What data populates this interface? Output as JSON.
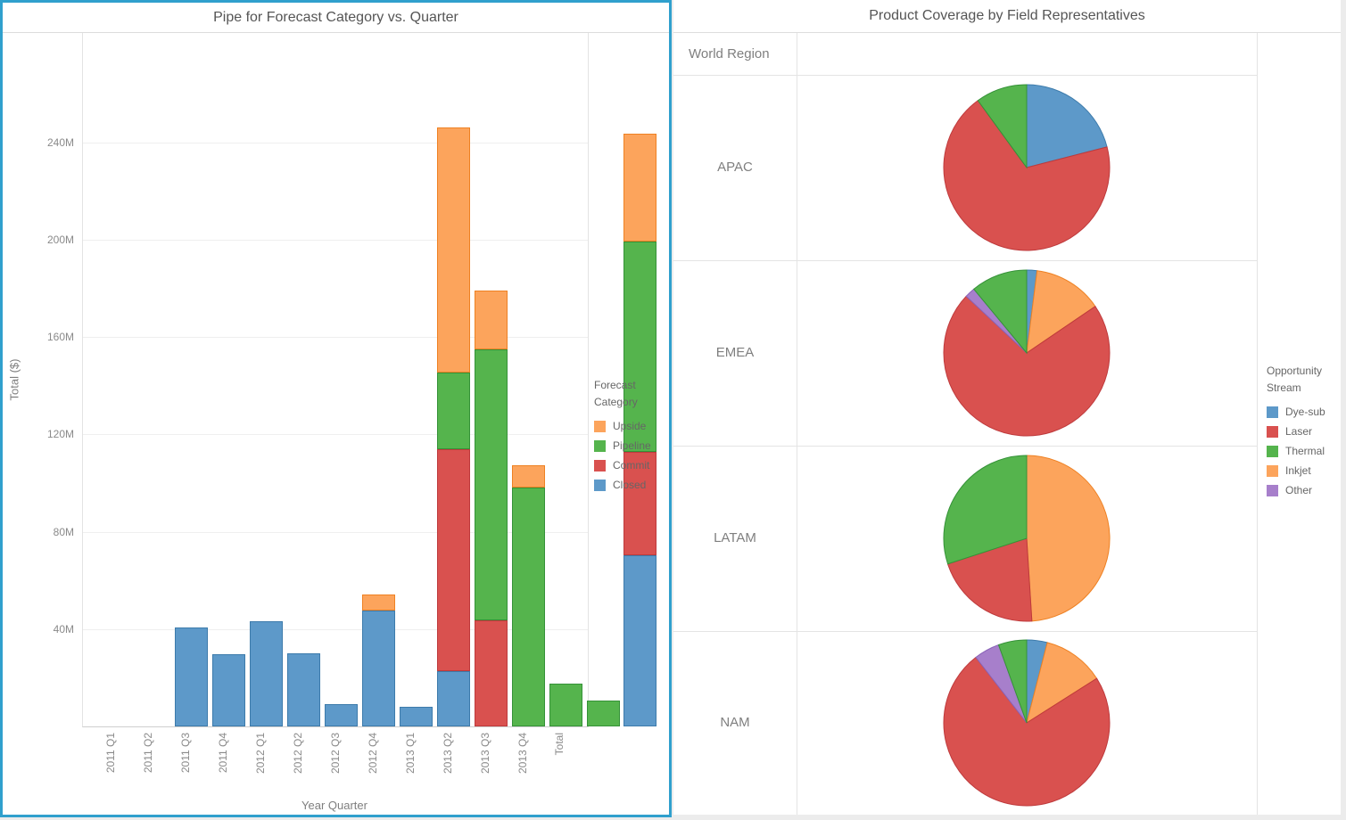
{
  "left_chart": {
    "title": "Pipe for Forecast Category vs. Quarter",
    "x_axis_label": "Year Quarter",
    "y_axis_label": "Total ($)",
    "legend_title_line1": "Forecast",
    "legend_title_line2": "Category",
    "legend_items": [
      "Upside",
      "Pipeline",
      "Commit",
      "Closed"
    ],
    "chart_data": {
      "type": "bar",
      "stacked": true,
      "categories": [
        "2011 Q1",
        "2011 Q2",
        "2011 Q3",
        "2011 Q4",
        "2012 Q1",
        "2012 Q2",
        "2012 Q3",
        "2012 Q4",
        "2013 Q1",
        "2013 Q2",
        "2013 Q3",
        "2013 Q4",
        "Total"
      ],
      "series": [
        {
          "name": "Closed",
          "values": [
            40.7,
            29.5,
            43.3,
            30.1,
            9.2,
            47.7,
            8.1,
            22.8,
            0,
            0,
            0,
            0,
            70.5
          ]
        },
        {
          "name": "Commit",
          "values": [
            0,
            0,
            0,
            0,
            0,
            0,
            0,
            91.0,
            43.7,
            0,
            0,
            0,
            42.2
          ]
        },
        {
          "name": "Pipeline",
          "values": [
            0,
            0,
            0,
            0,
            0,
            0,
            0,
            31.5,
            111.2,
            98.0,
            17.6,
            10.6,
            86.6
          ]
        },
        {
          "name": "Upside",
          "values": [
            0,
            0,
            0,
            0,
            0,
            6.6,
            0,
            100.9,
            24.2,
            9.2,
            0,
            0,
            44.4
          ]
        }
      ],
      "title": "Pipe for Forecast Category vs. Quarter",
      "xlabel": "Year Quarter",
      "ylabel": "Total ($)",
      "ylim": [
        0,
        285
      ],
      "yticks": [
        40,
        80,
        120,
        160,
        200,
        240
      ],
      "ytick_labels": [
        "40M",
        "80M",
        "120M",
        "160M",
        "200M",
        "240M"
      ],
      "values_unit": "millions USD",
      "grid": true,
      "legend_position": "right"
    }
  },
  "right_chart": {
    "title": "Product Coverage by Field Representatives",
    "row_header": "World Region",
    "legend_title_line1": "Opportunity",
    "legend_title_line2": "Stream",
    "legend_items": [
      "Dye-sub",
      "Laser",
      "Thermal",
      "Inkjet",
      "Other"
    ],
    "chart_data": [
      {
        "type": "pie",
        "region": "APAC",
        "slices": [
          {
            "name": "Dye-sub",
            "pct": 21
          },
          {
            "name": "Laser",
            "pct": 69
          },
          {
            "name": "Thermal",
            "pct": 10
          }
        ]
      },
      {
        "type": "pie",
        "region": "EMEA",
        "slices": [
          {
            "name": "Dye-sub",
            "pct": 2
          },
          {
            "name": "Inkjet",
            "pct": 13.5
          },
          {
            "name": "Laser",
            "pct": 71.5
          },
          {
            "name": "Other",
            "pct": 2
          },
          {
            "name": "Thermal",
            "pct": 11
          }
        ]
      },
      {
        "type": "pie",
        "region": "LATAM",
        "slices": [
          {
            "name": "Inkjet",
            "pct": 49
          },
          {
            "name": "Laser",
            "pct": 21
          },
          {
            "name": "Thermal",
            "pct": 30
          }
        ]
      },
      {
        "type": "pie",
        "region": "NAM",
        "slices": [
          {
            "name": "Dye-sub",
            "pct": 4
          },
          {
            "name": "Inkjet",
            "pct": 12
          },
          {
            "name": "Laser",
            "pct": 73.5
          },
          {
            "name": "Other",
            "pct": 5
          },
          {
            "name": "Thermal",
            "pct": 5.5
          }
        ]
      }
    ]
  },
  "colors": {
    "selection_border": "#30A0CD",
    "palette": {
      "Closed": {
        "fill": "#5D99C9",
        "stroke": "#3D7BAB"
      },
      "Commit": {
        "fill": "#D9514F",
        "stroke": "#BE3A3C"
      },
      "Pipeline": {
        "fill": "#55B44D",
        "stroke": "#359238"
      },
      "Upside": {
        "fill": "#FCA45C",
        "stroke": "#EE8123"
      },
      "Dye-sub": {
        "fill": "#5D99C9",
        "stroke": "#3D7BAB"
      },
      "Laser": {
        "fill": "#D9514F",
        "stroke": "#BE3A3C"
      },
      "Thermal": {
        "fill": "#55B44D",
        "stroke": "#359238"
      },
      "Inkjet": {
        "fill": "#FCA45C",
        "stroke": "#EE8123"
      },
      "Other": {
        "fill": "#A77FCB",
        "stroke": "#8A63B8"
      }
    }
  }
}
